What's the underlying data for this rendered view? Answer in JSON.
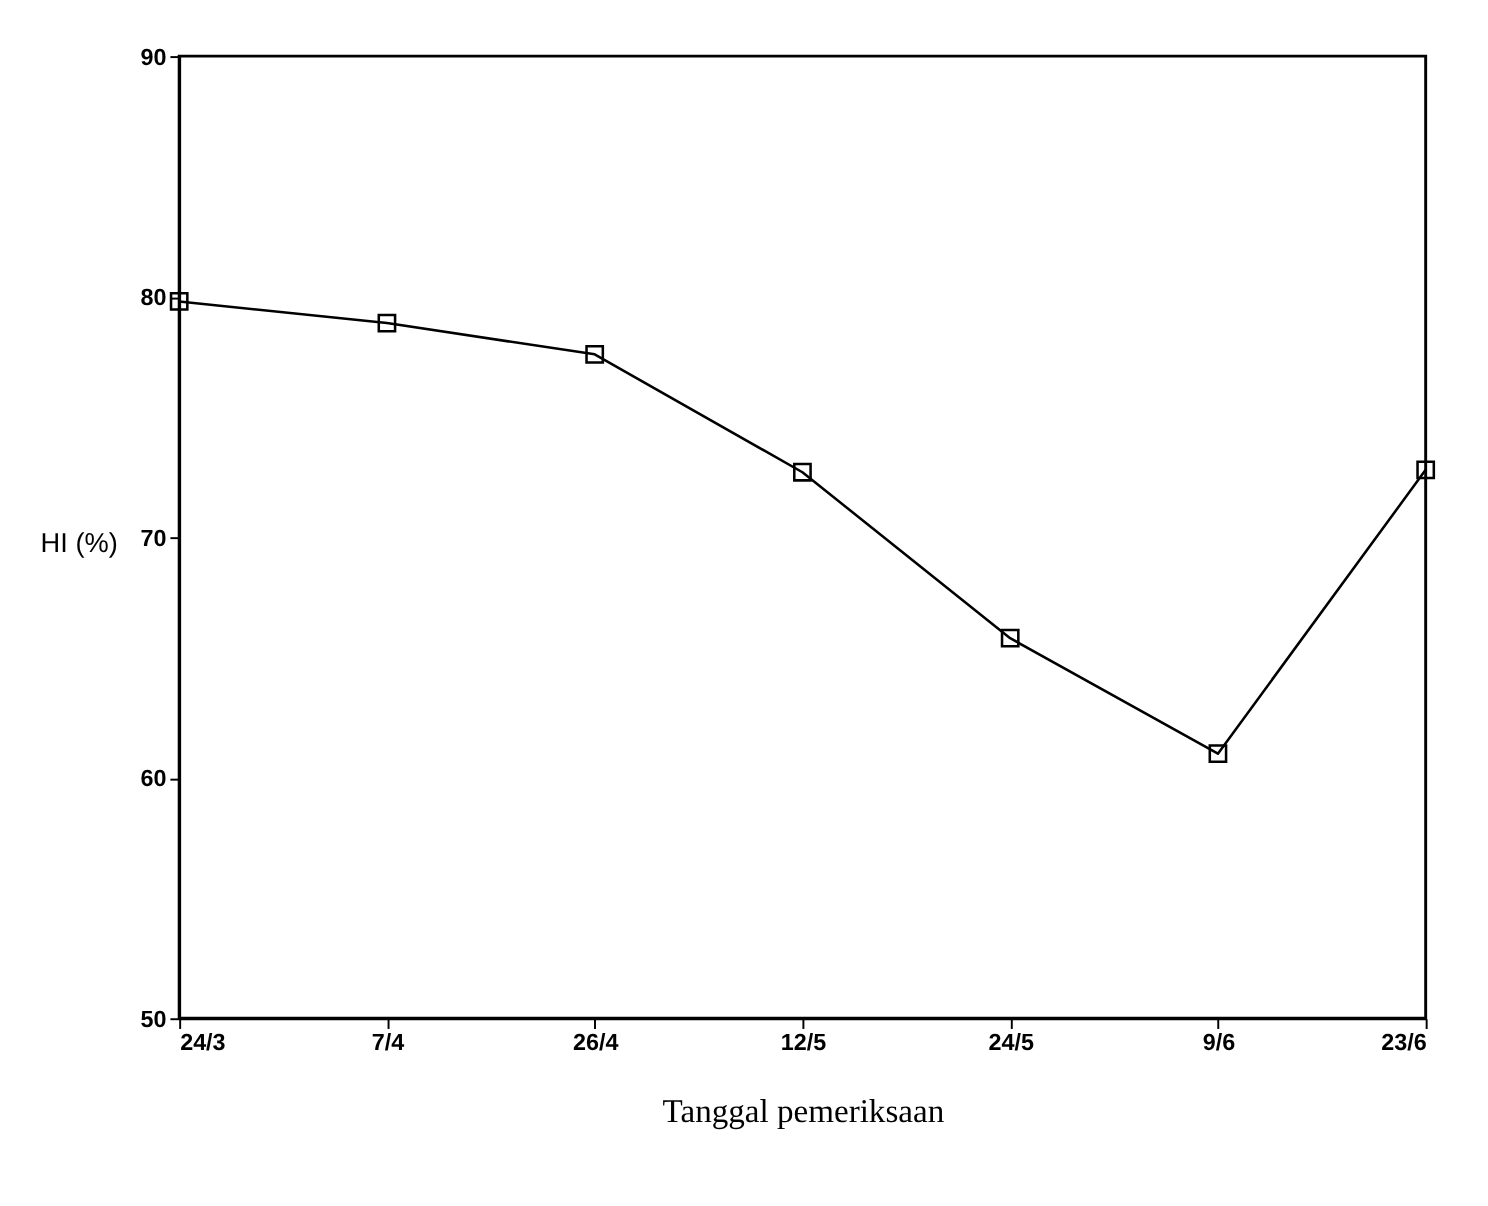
{
  "chart_data": {
    "type": "line",
    "xlabel": "Tanggal pemeriksaan",
    "ylabel": "HI (%)",
    "categories": [
      "24/3",
      "7/4",
      "26/4",
      "12/5",
      "24/5",
      "9/6",
      "23/6"
    ],
    "series": [
      {
        "color": "#000000",
        "values": [
          79.8,
          78.9,
          77.6,
          72.7,
          65.8,
          61.0,
          72.8
        ]
      }
    ],
    "ylim": [
      50,
      90
    ],
    "yticks": [
      50,
      60,
      70,
      80,
      90
    ],
    "grid": false,
    "marker": "square",
    "line_style": "solid"
  }
}
